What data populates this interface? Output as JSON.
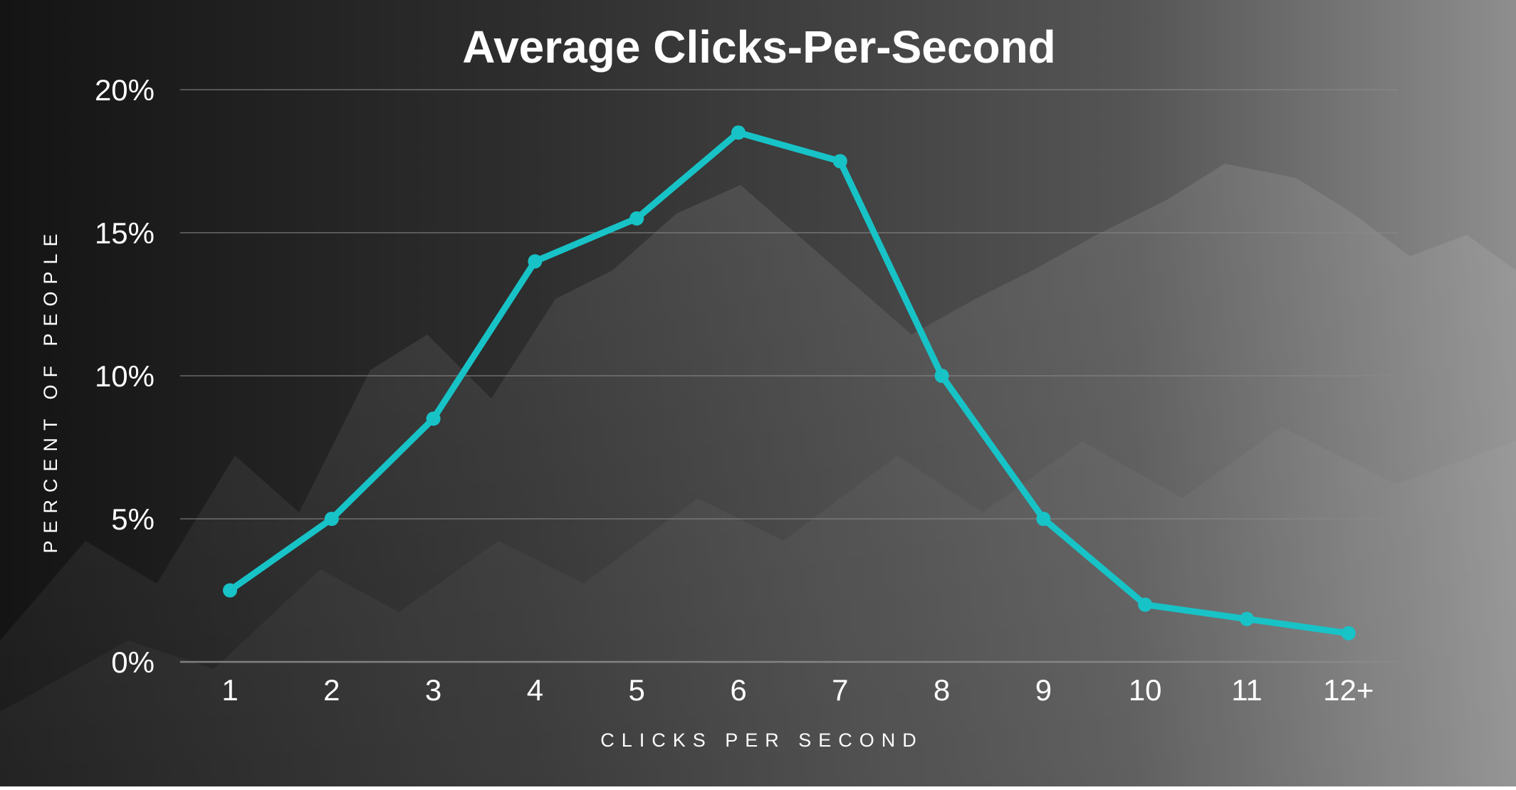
{
  "chart_data": {
    "type": "line",
    "title": "Average Clicks-Per-Second",
    "xlabel": "CLICKS PER SECOND",
    "ylabel": "PERCENT OF PEOPLE",
    "categories": [
      "1",
      "2",
      "3",
      "4",
      "5",
      "6",
      "7",
      "8",
      "9",
      "10",
      "11",
      "12+"
    ],
    "values": [
      2.5,
      5,
      8.5,
      14,
      15.5,
      18.5,
      17.5,
      10,
      5,
      2,
      1.5,
      1
    ],
    "ylim": [
      0,
      20
    ],
    "yticks": [
      "0%",
      "5%",
      "10%",
      "15%",
      "20%"
    ],
    "grid": true,
    "colors": {
      "line": "#17c3c7",
      "grid": "#8a8a8a",
      "text": "#ffffff",
      "background_dark": "#151515",
      "background_light": "#8c8c8c"
    }
  }
}
